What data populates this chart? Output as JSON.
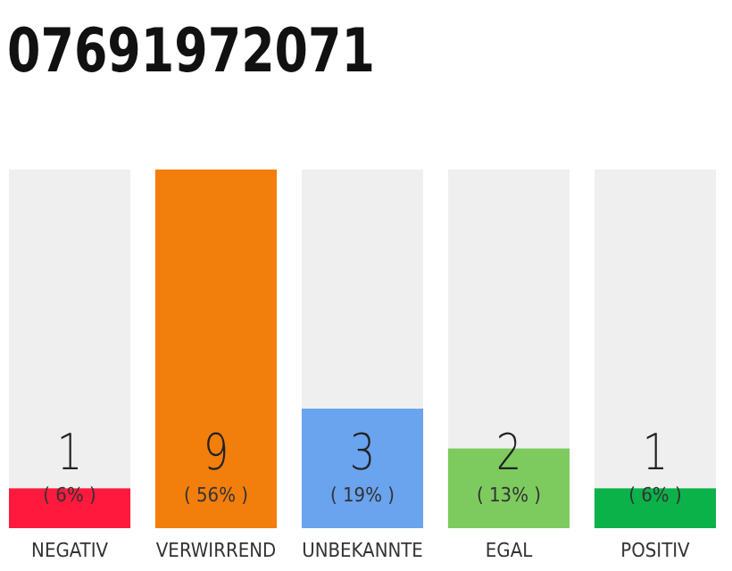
{
  "chart_data": {
    "type": "bar",
    "title": "07691972071",
    "categories": [
      "NEGATIV",
      "VERWIRREND",
      "UNBEKANNTE",
      "EGAL",
      "POSITIV"
    ],
    "values": [
      1,
      9,
      3,
      2,
      1
    ],
    "colors": [
      "#ff1a3d",
      "#f27e0c",
      "#6aa3ee",
      "#7dcb5e",
      "#0bb24a"
    ],
    "data_labels": true,
    "annotations": [
      "( 6% )",
      "( 56% )",
      "( 19% )",
      "( 13% )",
      "( 6% )"
    ]
  }
}
